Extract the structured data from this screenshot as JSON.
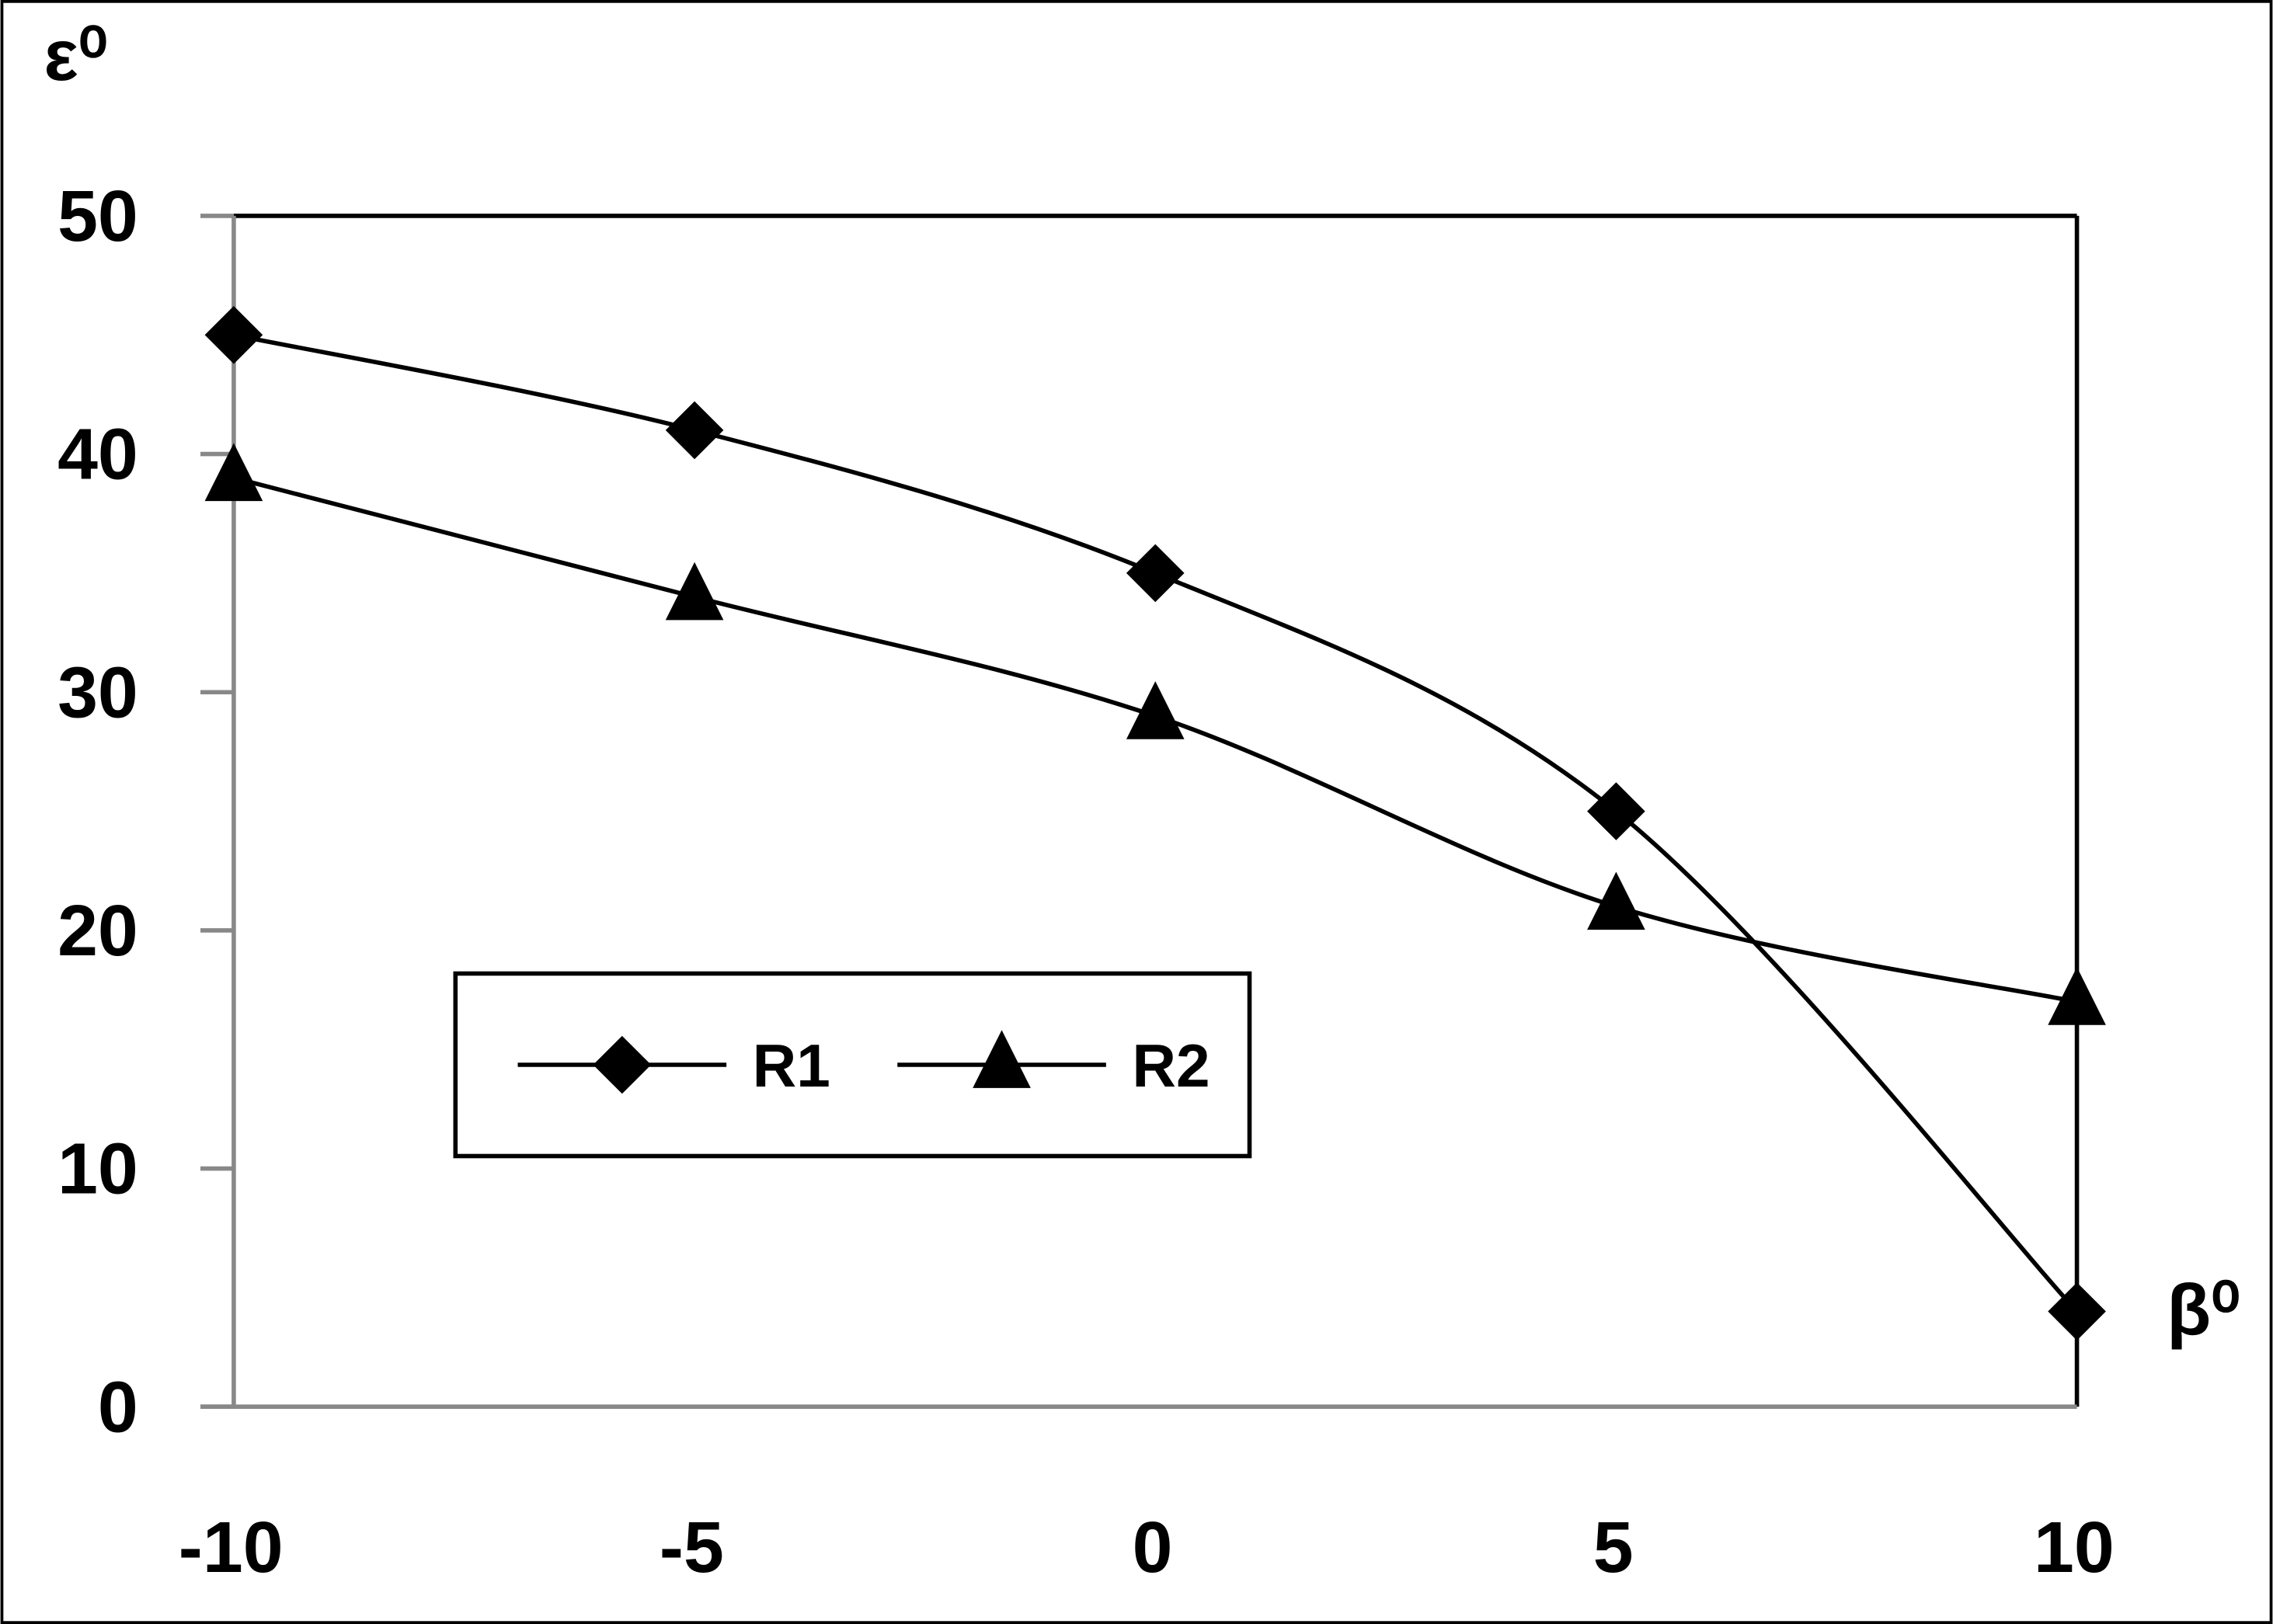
{
  "chart_data": {
    "type": "line",
    "smooth": true,
    "y_label": "ε⁰",
    "x_label": "β⁰",
    "x": [
      -10,
      -5,
      0,
      5,
      10
    ],
    "xlim": [
      -10,
      10
    ],
    "xticks": [
      -10,
      -5,
      0,
      5,
      10
    ],
    "ylim": [
      0,
      50
    ],
    "yticks": [
      0,
      10,
      20,
      30,
      40,
      50
    ],
    "series": [
      {
        "name": "R1",
        "color": "#000000",
        "marker": "diamond",
        "values": [
          45,
          41,
          35,
          25,
          4
        ]
      },
      {
        "name": "R2",
        "color": "#000000",
        "marker": "triangle",
        "values": [
          39,
          34,
          29,
          21,
          17
        ]
      }
    ]
  }
}
